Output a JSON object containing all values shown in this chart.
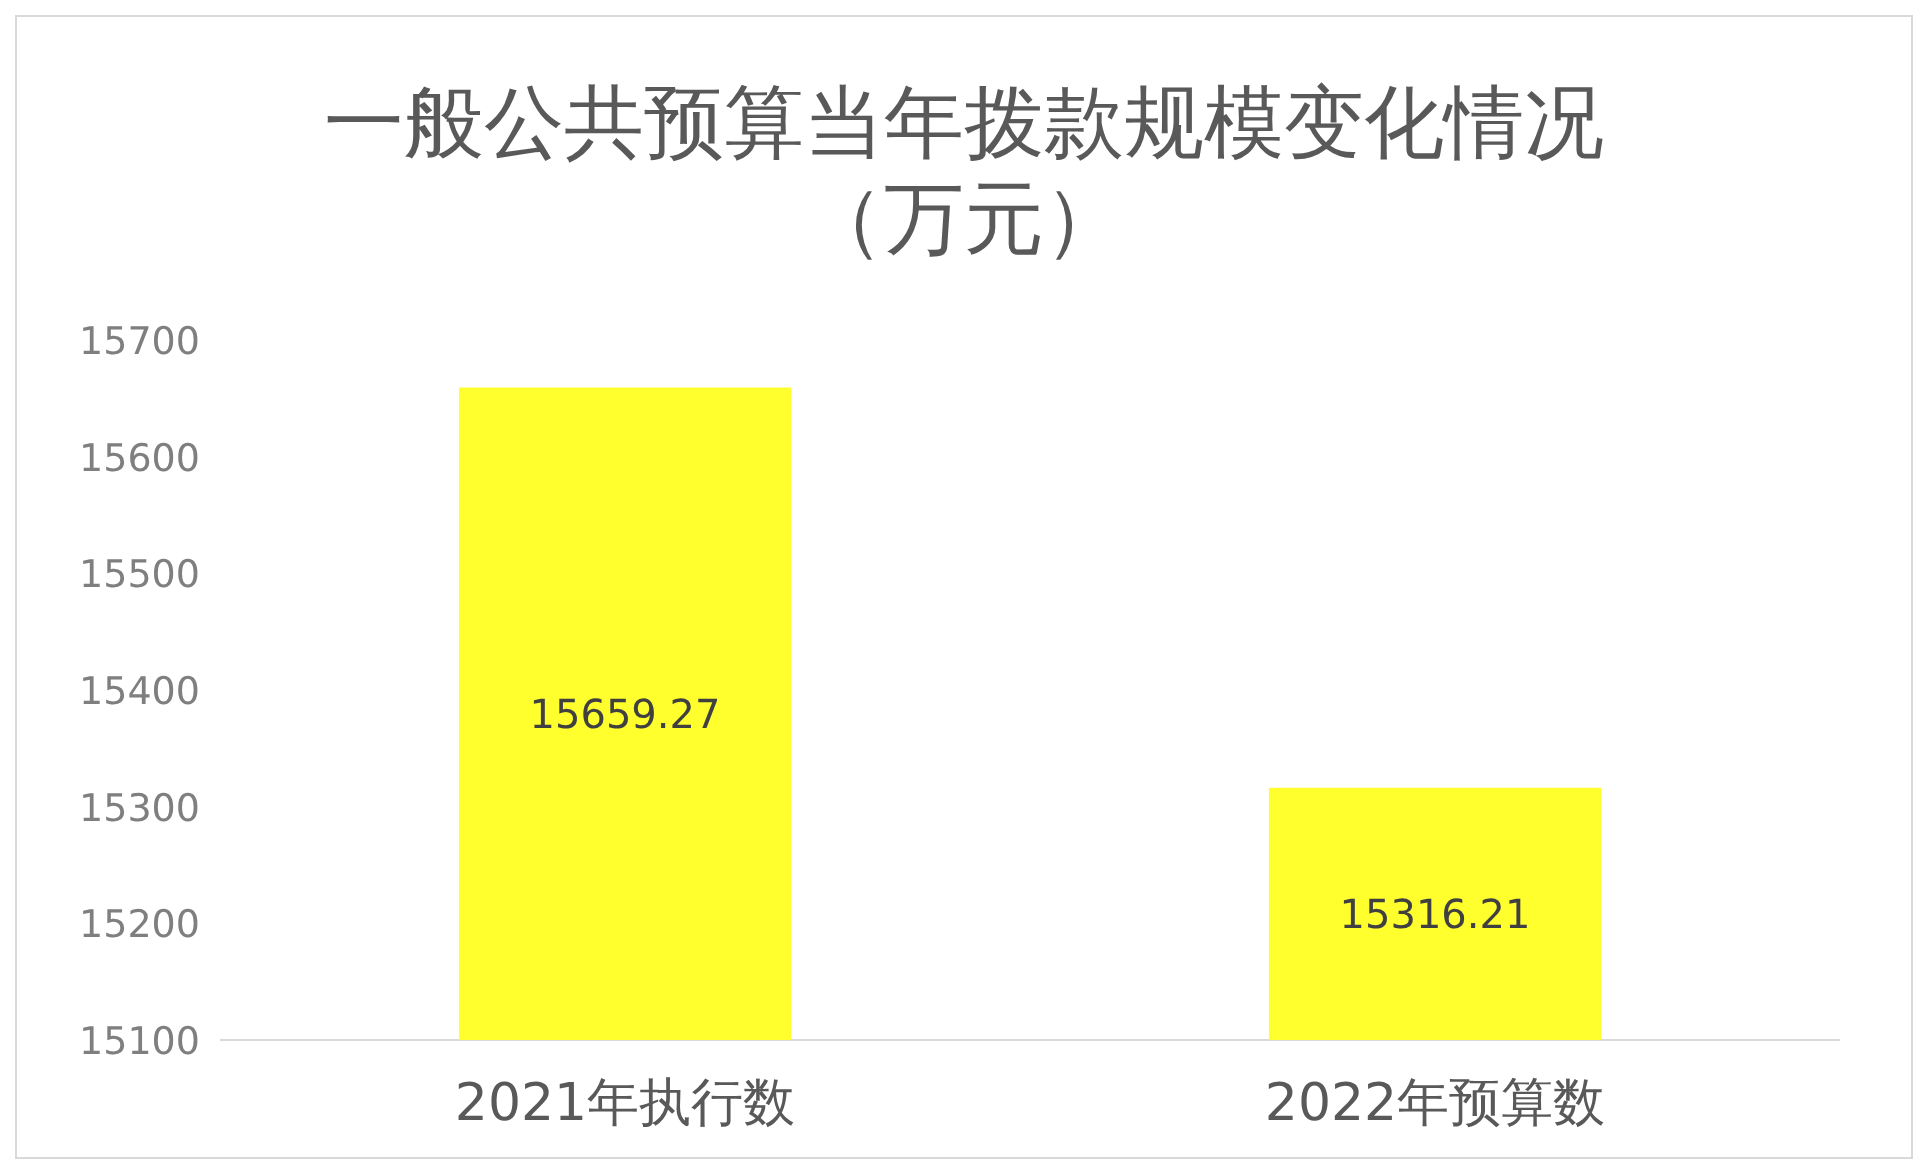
{
  "chart_data": {
    "type": "bar",
    "title": "一般公共预算当年拨款规模变化情况（万元）",
    "categories": [
      "2021年执行数",
      "2022年预算数"
    ],
    "values": [
      15659.27,
      15316.21
    ],
    "color": "#ffff2e",
    "data_labels": true,
    "ylim": [
      15100,
      15700
    ],
    "yticks": [
      15100,
      15200,
      15300,
      15400,
      15500,
      15600,
      15700
    ],
    "grid": false
  }
}
